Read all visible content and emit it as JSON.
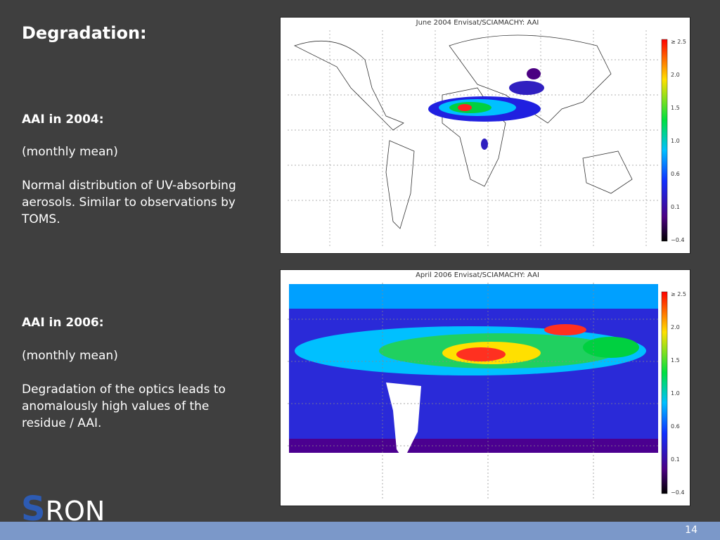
{
  "title": "Degradation:",
  "sections": [
    {
      "heading": "AAI in 2004:",
      "note": "(monthly mean)",
      "text": "Normal distribution of UV-absorbing aerosols. Similar to observations by TOMS."
    },
    {
      "heading": "AAI in 2006:",
      "note": "(monthly mean)",
      "text": "Degradation of the optics leads to anomalously high values of the residue / AAI."
    }
  ],
  "maps": [
    {
      "title": "June 2004   Envisat/SCIAMACHY: AAI",
      "colorbar_labels": [
        "≥ 2.5",
        "2.0",
        "1.5",
        "1.0",
        "0.6",
        "0.1",
        "−0.4"
      ]
    },
    {
      "title": "April 2006   Envisat/SCIAMACHY: AAI",
      "colorbar_labels": [
        "≥ 2.5",
        "2.0",
        "1.5",
        "1.0",
        "0.6",
        "0.1",
        "−0.4"
      ]
    }
  ],
  "logo": {
    "initial": "S",
    "rest": "RON"
  },
  "page_number": "14"
}
